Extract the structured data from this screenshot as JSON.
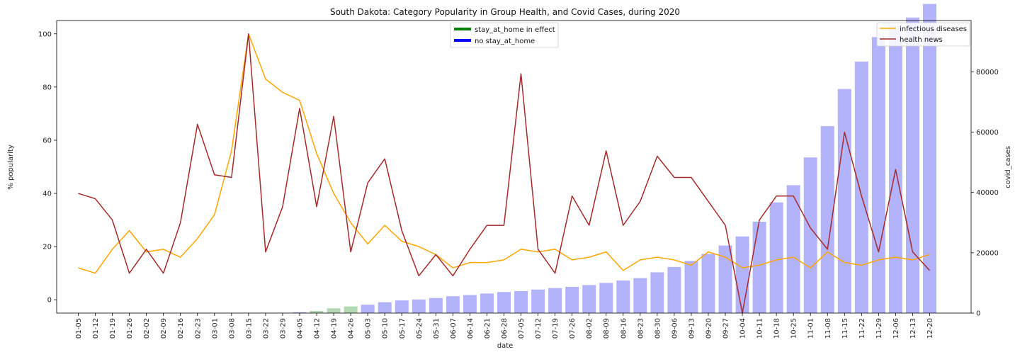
{
  "chart_data": {
    "type": "bar+line",
    "title": "South Dakota: Category Popularity in Group Health, and Covid Cases, during 2020",
    "xlabel": "date",
    "ylabel_left": "% popularity",
    "ylabel_right": "covid_cases",
    "ylim_left": [
      -5,
      105
    ],
    "ylim_right": [
      0,
      97000
    ],
    "yticks_left": [
      "0",
      "20",
      "40",
      "60",
      "80",
      "100"
    ],
    "yticks_right": [
      "0",
      "20000",
      "40000",
      "60000",
      "80000"
    ],
    "categories": [
      "01-05",
      "01-12",
      "01-19",
      "01-26",
      "02-02",
      "02-09",
      "02-16",
      "02-23",
      "03-01",
      "03-08",
      "03-15",
      "03-22",
      "03-29",
      "04-05",
      "04-12",
      "04-19",
      "04-26",
      "05-03",
      "05-10",
      "05-17",
      "05-24",
      "05-31",
      "06-07",
      "06-14",
      "06-21",
      "06-28",
      "07-05",
      "07-12",
      "07-19",
      "07-26",
      "08-02",
      "08-09",
      "08-16",
      "08-23",
      "08-30",
      "09-06",
      "09-13",
      "09-20",
      "09-27",
      "10-04",
      "10-11",
      "10-18",
      "10-25",
      "11-01",
      "11-08",
      "11-15",
      "11-22",
      "11-29",
      "12-06",
      "12-13",
      "12-20"
    ],
    "bars": {
      "name": "covid_cases",
      "stay_at_home_in_effect": [
        false,
        false,
        false,
        false,
        false,
        false,
        false,
        false,
        false,
        false,
        false,
        false,
        false,
        false,
        true,
        true,
        true,
        false,
        false,
        false,
        false,
        false,
        false,
        false,
        false,
        false,
        false,
        false,
        false,
        false,
        false,
        false,
        false,
        false,
        false,
        false,
        false,
        false,
        false,
        false,
        false,
        false,
        false,
        false,
        false,
        false,
        false,
        false,
        false,
        false,
        false
      ],
      "values": [
        0,
        0,
        0,
        0,
        0,
        0,
        0,
        0,
        0,
        0,
        10,
        20,
        100,
        300,
        700,
        1600,
        2200,
        2800,
        3600,
        4200,
        4500,
        5000,
        5600,
        6000,
        6500,
        7000,
        7300,
        7800,
        8300,
        8700,
        9300,
        10000,
        10800,
        11600,
        13500,
        15300,
        17300,
        19600,
        22400,
        25400,
        30300,
        36700,
        42400,
        51600,
        62000,
        74300,
        83400,
        91500,
        95300,
        98000,
        102500
      ],
      "color_in_effect": "#b3d9b3",
      "color_default": "#b3b3fb"
    },
    "series": [
      {
        "name": "infectious diseases",
        "color": "#ffa500",
        "values": [
          12,
          10,
          19,
          26,
          18,
          19,
          16,
          23,
          32,
          56,
          100,
          83,
          78,
          75,
          55,
          40,
          29,
          21,
          28,
          22,
          20,
          17,
          12,
          14,
          14,
          15,
          19,
          18,
          19,
          15,
          16,
          18,
          11,
          15,
          16,
          15,
          13,
          18,
          16,
          12,
          13,
          15,
          16,
          12,
          18,
          14,
          13,
          15,
          16,
          15,
          17
        ]
      },
      {
        "name": "health news",
        "color": "#a52a2a",
        "values": [
          40,
          38,
          30,
          10,
          19,
          10,
          29,
          66,
          47,
          46,
          100,
          18,
          35,
          72,
          35,
          69,
          18,
          44,
          53,
          26,
          9,
          17,
          9,
          19,
          28,
          28,
          85,
          19,
          10,
          39,
          28,
          56,
          28,
          37,
          54,
          46,
          46,
          37,
          28,
          -5,
          30,
          39,
          39,
          27,
          19,
          63,
          39,
          18,
          49,
          18,
          11
        ]
      }
    ],
    "legend_left": [
      {
        "label": "stay_at_home in effect",
        "color": "#008000"
      },
      {
        "label": "no stay_at_home",
        "color": "#0000ff"
      }
    ],
    "legend_right_placement": "top-right",
    "legend_left_placement": "top-center"
  }
}
